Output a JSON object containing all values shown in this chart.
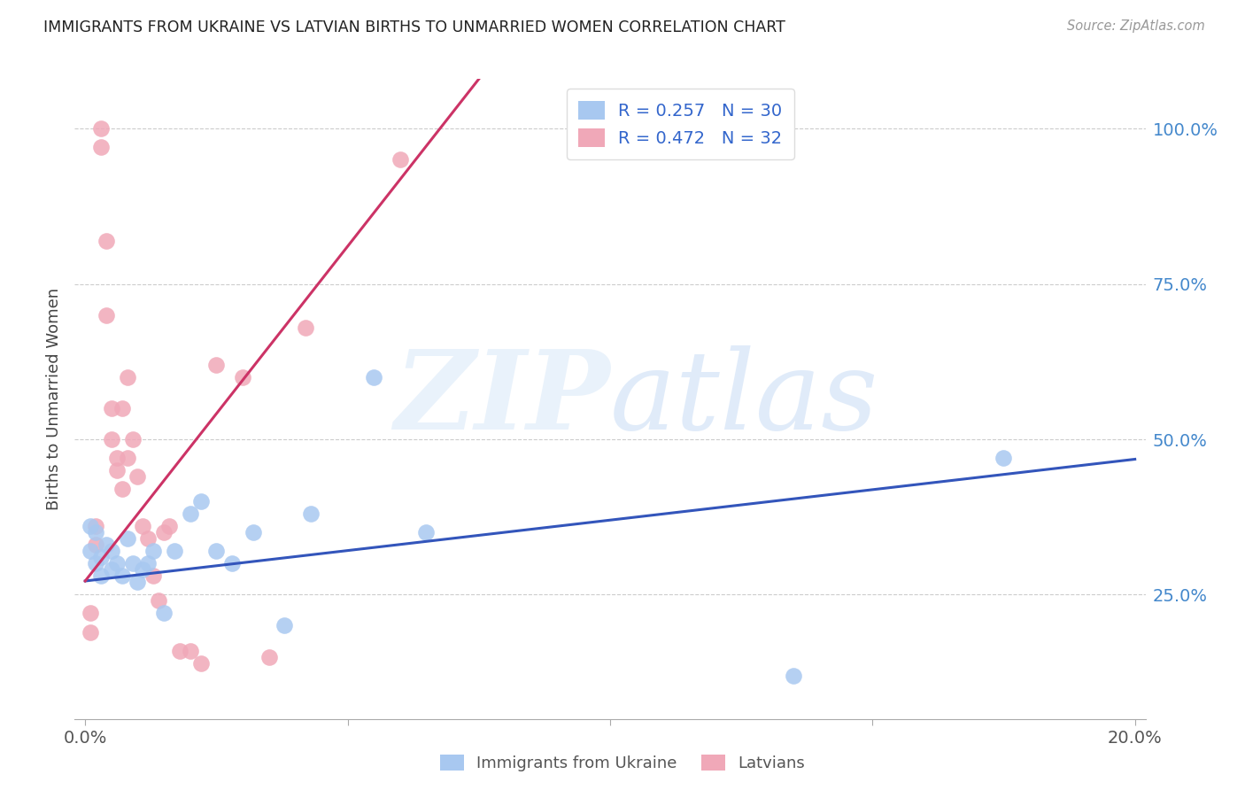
{
  "title": "IMMIGRANTS FROM UKRAINE VS LATVIAN BIRTHS TO UNMARRIED WOMEN CORRELATION CHART",
  "source": "Source: ZipAtlas.com",
  "ylabel": "Births to Unmarried Women",
  "xlim_min": -0.002,
  "xlim_max": 0.202,
  "ylim_min": 0.05,
  "ylim_max": 1.08,
  "yticks": [
    0.25,
    0.5,
    0.75,
    1.0
  ],
  "blue_label": "Immigrants from Ukraine",
  "blue_R": 0.257,
  "blue_N": 30,
  "pink_label": "Latvians",
  "pink_R": 0.472,
  "pink_N": 32,
  "blue_color": "#A8C8F0",
  "pink_color": "#F0A8B8",
  "blue_line_color": "#3355BB",
  "pink_line_color": "#CC3366",
  "legend_text_color": "#3366CC",
  "right_axis_color": "#4488CC",
  "background_color": "#FFFFFF",
  "grid_color": "#CCCCCC",
  "blue_x": [
    0.001,
    0.001,
    0.002,
    0.002,
    0.003,
    0.003,
    0.004,
    0.005,
    0.005,
    0.006,
    0.007,
    0.008,
    0.009,
    0.01,
    0.011,
    0.012,
    0.013,
    0.015,
    0.017,
    0.02,
    0.022,
    0.025,
    0.028,
    0.032,
    0.038,
    0.043,
    0.055,
    0.065,
    0.135,
    0.175
  ],
  "blue_y": [
    0.32,
    0.36,
    0.3,
    0.35,
    0.31,
    0.28,
    0.33,
    0.29,
    0.32,
    0.3,
    0.28,
    0.34,
    0.3,
    0.27,
    0.29,
    0.3,
    0.32,
    0.22,
    0.32,
    0.38,
    0.4,
    0.32,
    0.3,
    0.35,
    0.2,
    0.38,
    0.6,
    0.35,
    0.12,
    0.47
  ],
  "blue_regline_x": [
    0.0,
    0.2
  ],
  "blue_regline_y": [
    0.272,
    0.468
  ],
  "pink_x": [
    0.001,
    0.001,
    0.002,
    0.002,
    0.003,
    0.003,
    0.004,
    0.004,
    0.005,
    0.005,
    0.006,
    0.006,
    0.007,
    0.007,
    0.008,
    0.008,
    0.009,
    0.01,
    0.011,
    0.012,
    0.013,
    0.014,
    0.015,
    0.016,
    0.018,
    0.02,
    0.022,
    0.025,
    0.03,
    0.035,
    0.042,
    0.06
  ],
  "pink_y": [
    0.22,
    0.19,
    0.33,
    0.36,
    0.97,
    1.0,
    0.82,
    0.7,
    0.55,
    0.5,
    0.47,
    0.45,
    0.42,
    0.55,
    0.6,
    0.47,
    0.5,
    0.44,
    0.36,
    0.34,
    0.28,
    0.24,
    0.35,
    0.36,
    0.16,
    0.16,
    0.14,
    0.62,
    0.6,
    0.15,
    0.68,
    0.95
  ],
  "pink_regline_x": [
    0.0,
    0.075
  ],
  "pink_regline_y": [
    0.272,
    1.08
  ]
}
